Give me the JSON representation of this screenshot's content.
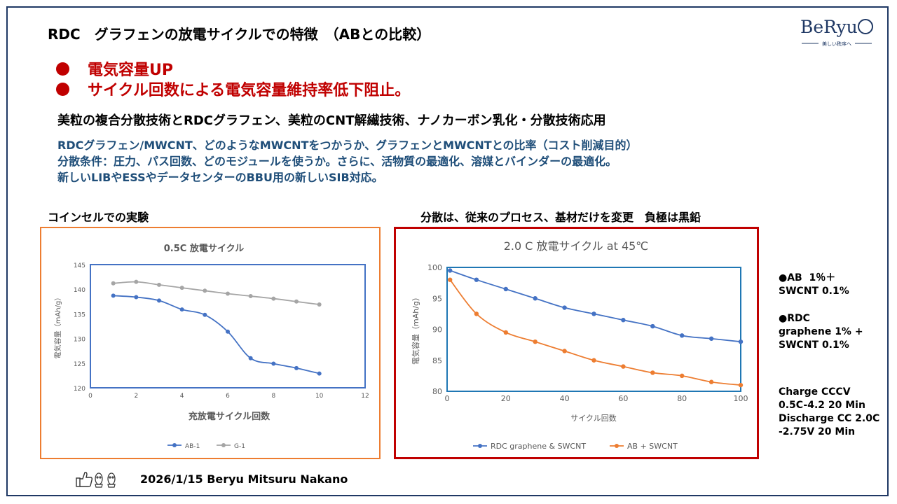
{
  "header": {
    "title": "RDC　グラフェンの放電サイクルでの特徴　（ABとの比較）",
    "logo_text": "BeRyu",
    "logo_tagline": "美しい秩序へ"
  },
  "bullets": [
    "電気容量UP",
    "サイクル回数による電気容量維持率低下阻止。"
  ],
  "lead_text": "美粒の複合分散技術とRDCグラフェン、美粒のCNT解繊技術、ナノカーボン乳化・分散技術応用",
  "blue_lines": [
    "RDCグラフェン/MWCNT、どのようなMWCNTをつかうか、グラフェンとMWCNTとの比率（コスト削減目的）",
    "分散条件：圧力、パス回数、どのモジュールを使うか。さらに、活物質の最適化、溶媒とバインダーの最適化。",
    "新しいLIBやESSやデータセンターのBBU用の新しいSIB対応。"
  ],
  "left_section_label": "コインセルでの実験",
  "right_section_label": "分散は、従来のプロセス、基材だけを変更　負極は黒鉛",
  "side_notes": {
    "ab": "●AB  1％＋\nSWCNT 0.1%",
    "rdc": "●RDC\ngraphene 1% +\nSWCNT 0.1%",
    "conditions": "Charge CCCV\n0.5C-4.2 20 Min\nDischarge CC 2.0C\n-2.75V 20 Min"
  },
  "footer": {
    "text": "2026/1/15 Beryu Mitsuru Nakano",
    "thumbs_icon": "thumbs-up-icon",
    "mascot_icon": "mascot-icon"
  },
  "colors": {
    "navy": "#1f3864",
    "red": "#c00000",
    "orange_frame": "#ed7d31",
    "dark_red_frame": "#c00000",
    "series_blue": "#4472c4",
    "series_gray": "#a5a5a5",
    "series_orange": "#ed7d31"
  },
  "chart_data": [
    {
      "type": "line",
      "title": "0.5C 放電サイクル",
      "xlabel": "充放電サイクル回数",
      "ylabel": "電気容量（mAh/g）",
      "xlim": [
        0,
        12
      ],
      "ylim": [
        120,
        145
      ],
      "xticks": [
        0,
        2,
        4,
        6,
        8,
        10,
        12
      ],
      "yticks": [
        120,
        125,
        130,
        135,
        140,
        145
      ],
      "grid": false,
      "legend_position": "bottom",
      "series": [
        {
          "name": "AB-1",
          "color": "#4472c4",
          "x": [
            1,
            2,
            3,
            4,
            5,
            6,
            7,
            8,
            9,
            10
          ],
          "y": [
            138.7,
            138.4,
            137.7,
            135.9,
            134.8,
            131.4,
            126.0,
            124.9,
            124.0,
            122.9
          ]
        },
        {
          "name": "G-1",
          "color": "#a5a5a5",
          "x": [
            1,
            2,
            3,
            4,
            5,
            6,
            7,
            8,
            9,
            10
          ],
          "y": [
            141.2,
            141.5,
            140.9,
            140.3,
            139.7,
            139.1,
            138.6,
            138.1,
            137.5,
            136.9
          ]
        }
      ]
    },
    {
      "type": "line",
      "title": "2.0 C 放電サイクル at 45℃",
      "xlabel": "サイクル回数",
      "ylabel": "電気容量（mAh/g）",
      "xlim": [
        0,
        100
      ],
      "ylim": [
        80,
        100
      ],
      "xticks": [
        0,
        20,
        40,
        60,
        80,
        100
      ],
      "yticks": [
        80,
        85,
        90,
        95,
        100
      ],
      "grid": false,
      "legend_position": "bottom",
      "series": [
        {
          "name": "RDC graphene & SWCNT",
          "color": "#4472c4",
          "x": [
            1,
            10,
            20,
            30,
            40,
            50,
            60,
            70,
            80,
            90,
            100
          ],
          "y": [
            99.5,
            98.0,
            96.5,
            95.0,
            93.5,
            92.5,
            91.5,
            90.5,
            89.0,
            88.5,
            88.0
          ]
        },
        {
          "name": "AB + SWCNT",
          "color": "#ed7d31",
          "x": [
            1,
            10,
            20,
            30,
            40,
            50,
            60,
            70,
            80,
            90,
            100
          ],
          "y": [
            98.0,
            92.5,
            89.5,
            88.0,
            86.5,
            85.0,
            84.0,
            83.0,
            82.5,
            81.5,
            81.0
          ]
        }
      ]
    }
  ]
}
